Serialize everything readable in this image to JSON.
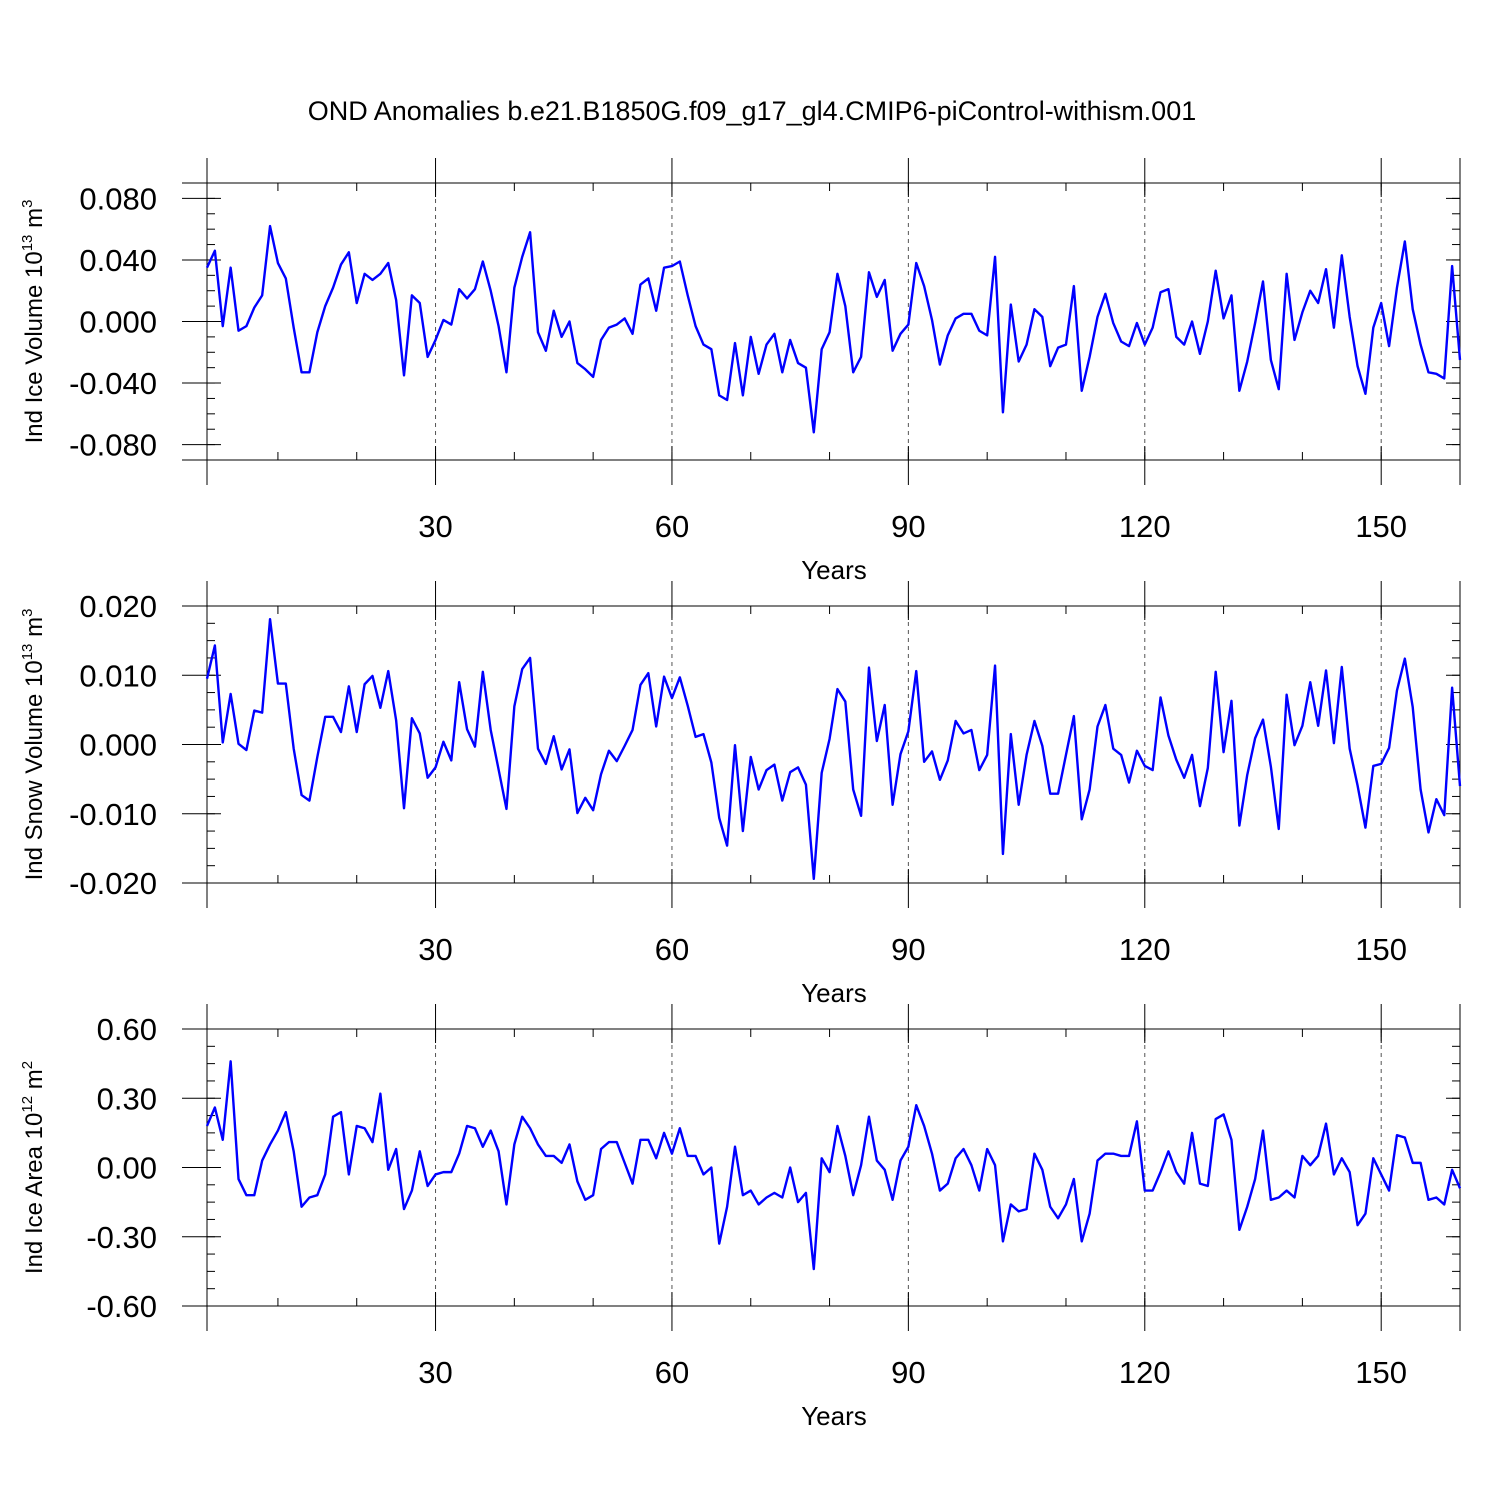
{
  "title": "OND Anomalies b.e21.B1850G.f09_g17_gl4.CMIP6-piControl-withism.001",
  "line_color": "#0000ff",
  "chart_data": [
    {
      "type": "line",
      "ylabel": {
        "base": "Ind Ice Volume 10",
        "exp1": "13",
        "unit": " m",
        "exp2": "3"
      },
      "xlabel": "Years",
      "xlim": [
        1,
        160
      ],
      "ylim": [
        -0.09,
        0.09
      ],
      "yticks": [
        -0.08,
        -0.04,
        0.0,
        0.04,
        0.08
      ],
      "ytick_labels": [
        "-0.080",
        "-0.040",
        "0.000",
        "0.040",
        "0.080"
      ],
      "xticks": [
        30,
        60,
        90,
        120,
        150
      ],
      "xtick_labels": [
        "30",
        "60",
        "90",
        "120",
        "150"
      ],
      "grid": "vertical dashed at major x ticks",
      "series": [
        {
          "values": [
            0.035,
            0.046,
            -0.003,
            0.035,
            -0.006,
            -0.003,
            0.009,
            0.017,
            0.062,
            0.038,
            0.028,
            -0.004,
            -0.033,
            -0.033,
            -0.007,
            0.01,
            0.022,
            0.037,
            0.045,
            0.012,
            0.031,
            0.027,
            0.031,
            0.038,
            0.014,
            -0.035,
            0.017,
            0.012,
            -0.023,
            -0.012,
            0.001,
            -0.002,
            0.021,
            0.015,
            0.021,
            0.039,
            0.02,
            -0.003,
            -0.033,
            0.022,
            0.042,
            0.058,
            -0.007,
            -0.019,
            0.007,
            -0.01,
            0.0,
            -0.027,
            -0.031,
            -0.036,
            -0.012,
            -0.004,
            -0.002,
            0.002,
            -0.008,
            0.024,
            0.028,
            0.007,
            0.035,
            0.036,
            0.039,
            0.017,
            -0.003,
            -0.015,
            -0.018,
            -0.048,
            -0.051,
            -0.014,
            -0.048,
            -0.01,
            -0.034,
            -0.015,
            -0.008,
            -0.033,
            -0.012,
            -0.027,
            -0.03,
            -0.072,
            -0.018,
            -0.007,
            0.031,
            0.01,
            -0.033,
            -0.023,
            0.032,
            0.016,
            0.027,
            -0.019,
            -0.008,
            -0.002,
            0.038,
            0.023,
            0.001,
            -0.028,
            -0.009,
            0.002,
            0.005,
            0.005,
            -0.006,
            -0.009,
            0.042,
            -0.059,
            0.011,
            -0.026,
            -0.015,
            0.008,
            0.003,
            -0.029,
            -0.017,
            -0.015,
            0.023,
            -0.045,
            -0.023,
            0.003,
            0.018,
            -0.001,
            -0.013,
            -0.016,
            -0.001,
            -0.015,
            -0.004,
            0.019,
            0.021,
            -0.01,
            -0.015,
            0.0,
            -0.021,
            0.0,
            0.033,
            0.002,
            0.017,
            -0.045,
            -0.026,
            -0.001,
            0.026,
            -0.025,
            -0.044,
            0.031,
            -0.012,
            0.006,
            0.02,
            0.012,
            0.034,
            -0.004,
            0.043,
            0.003,
            -0.029,
            -0.047,
            -0.004,
            0.012,
            -0.016,
            0.022,
            0.052,
            0.008,
            -0.015,
            -0.033,
            -0.034,
            -0.037,
            0.036,
            -0.025
          ]
        }
      ]
    },
    {
      "type": "line",
      "ylabel": {
        "base": "Ind Snow Volume 10",
        "exp1": "13",
        "unit": " m",
        "exp2": "3"
      },
      "xlabel": "Years",
      "xlim": [
        1,
        160
      ],
      "ylim": [
        -0.02,
        0.02
      ],
      "yticks": [
        -0.02,
        -0.01,
        0.0,
        0.01,
        0.02
      ],
      "ytick_labels": [
        "-0.020",
        "-0.010",
        "0.000",
        "0.010",
        "0.020"
      ],
      "xticks": [
        30,
        60,
        90,
        120,
        150
      ],
      "xtick_labels": [
        "30",
        "60",
        "90",
        "120",
        "150"
      ],
      "grid": "vertical dashed at major x ticks",
      "series": [
        {
          "values": [
            0.0095,
            0.0143,
            0.0003,
            0.0073,
            0.0001,
            -0.0008,
            0.0049,
            0.0046,
            0.0181,
            0.0088,
            0.0088,
            -0.0006,
            -0.0073,
            -0.0081,
            -0.0018,
            0.004,
            0.004,
            0.0018,
            0.0084,
            0.0018,
            0.0087,
            0.0099,
            0.0053,
            0.0106,
            0.0035,
            -0.0092,
            0.0038,
            0.0016,
            -0.0048,
            -0.0033,
            0.0004,
            -0.0023,
            0.009,
            0.0022,
            -0.0003,
            0.0105,
            0.0021,
            -0.0036,
            -0.0093,
            0.0055,
            0.0109,
            0.0125,
            -0.0006,
            -0.0028,
            0.0012,
            -0.0036,
            -0.0007,
            -0.0099,
            -0.0077,
            -0.0095,
            -0.0043,
            -0.0009,
            -0.0024,
            -0.0002,
            0.0021,
            0.0086,
            0.0103,
            0.0026,
            0.0098,
            0.0067,
            0.0097,
            0.0056,
            0.0011,
            0.0015,
            -0.0026,
            -0.0106,
            -0.0146,
            -0.0001,
            -0.0125,
            -0.0018,
            -0.0065,
            -0.0037,
            -0.0029,
            -0.0081,
            -0.004,
            -0.0033,
            -0.0058,
            -0.0194,
            -0.0041,
            0.0008,
            0.008,
            0.0062,
            -0.0065,
            -0.0103,
            0.0111,
            0.0005,
            0.0057,
            -0.0087,
            -0.0014,
            0.0019,
            0.0106,
            -0.0025,
            -0.001,
            -0.0051,
            -0.0023,
            0.0034,
            0.0016,
            0.0021,
            -0.0037,
            -0.0015,
            0.0114,
            -0.0158,
            0.0015,
            -0.0087,
            -0.0015,
            0.0034,
            -0.0002,
            -0.0071,
            -0.0071,
            -0.0015,
            0.0041,
            -0.0108,
            -0.0065,
            0.0026,
            0.0057,
            -0.0006,
            -0.0015,
            -0.0055,
            -0.0009,
            -0.0031,
            -0.0037,
            0.0068,
            0.0013,
            -0.0022,
            -0.0048,
            -0.0015,
            -0.0089,
            -0.0034,
            0.0105,
            -0.0011,
            0.0063,
            -0.0117,
            -0.0044,
            0.0009,
            0.0036,
            -0.0032,
            -0.0122,
            0.0072,
            -0.0001,
            0.0027,
            0.009,
            0.0027,
            0.0107,
            0.0002,
            0.0112,
            -0.0006,
            -0.0059,
            -0.012,
            -0.0031,
            -0.0028,
            -0.0005,
            0.0078,
            0.0124,
            0.0054,
            -0.0065,
            -0.0127,
            -0.0079,
            -0.0102,
            0.0082,
            -0.006
          ]
        }
      ]
    },
    {
      "type": "line",
      "ylabel": {
        "base": "Ind Ice Area 10",
        "exp1": "12",
        "unit": " m",
        "exp2": "2"
      },
      "xlabel": "Years",
      "xlim": [
        1,
        160
      ],
      "ylim": [
        -0.6,
        0.6
      ],
      "yticks": [
        -0.6,
        -0.3,
        0.0,
        0.3,
        0.6
      ],
      "ytick_labels": [
        "-0.60",
        "-0.30",
        "0.00",
        "0.30",
        "0.60"
      ],
      "xticks": [
        30,
        60,
        90,
        120,
        150
      ],
      "xtick_labels": [
        "30",
        "60",
        "90",
        "120",
        "150"
      ],
      "grid": "vertical dashed at major x ticks",
      "series": [
        {
          "values": [
            0.18,
            0.26,
            0.12,
            0.46,
            -0.05,
            -0.12,
            -0.12,
            0.03,
            0.1,
            0.16,
            0.24,
            0.07,
            -0.17,
            -0.13,
            -0.12,
            -0.03,
            0.22,
            0.24,
            -0.03,
            0.18,
            0.17,
            0.11,
            0.32,
            -0.01,
            0.08,
            -0.18,
            -0.1,
            0.07,
            -0.08,
            -0.03,
            -0.02,
            -0.02,
            0.06,
            0.18,
            0.17,
            0.09,
            0.16,
            0.07,
            -0.16,
            0.1,
            0.22,
            0.17,
            0.1,
            0.05,
            0.05,
            0.02,
            0.1,
            -0.06,
            -0.14,
            -0.12,
            0.08,
            0.11,
            0.11,
            0.02,
            -0.07,
            0.12,
            0.12,
            0.04,
            0.15,
            0.06,
            0.17,
            0.05,
            0.05,
            -0.03,
            0.0,
            -0.33,
            -0.17,
            0.09,
            -0.12,
            -0.1,
            -0.16,
            -0.13,
            -0.11,
            -0.13,
            0.0,
            -0.15,
            -0.11,
            -0.44,
            0.04,
            -0.02,
            0.18,
            0.05,
            -0.12,
            0.01,
            0.22,
            0.03,
            -0.01,
            -0.14,
            0.03,
            0.09,
            0.27,
            0.18,
            0.06,
            -0.1,
            -0.07,
            0.04,
            0.08,
            0.01,
            -0.1,
            0.08,
            0.01,
            -0.32,
            -0.16,
            -0.19,
            -0.18,
            0.06,
            -0.01,
            -0.17,
            -0.22,
            -0.16,
            -0.05,
            -0.32,
            -0.2,
            0.03,
            0.06,
            0.06,
            0.05,
            0.05,
            0.2,
            -0.1,
            -0.1,
            -0.02,
            0.07,
            -0.02,
            -0.07,
            0.15,
            -0.07,
            -0.08,
            0.21,
            0.23,
            0.12,
            -0.27,
            -0.17,
            -0.05,
            0.16,
            -0.14,
            -0.13,
            -0.1,
            -0.13,
            0.05,
            0.01,
            0.05,
            0.19,
            -0.03,
            0.04,
            -0.02,
            -0.25,
            -0.2,
            0.04,
            -0.03,
            -0.1,
            0.14,
            0.13,
            0.02,
            0.02,
            -0.14,
            -0.13,
            -0.16,
            -0.01,
            -0.09
          ]
        }
      ]
    }
  ]
}
